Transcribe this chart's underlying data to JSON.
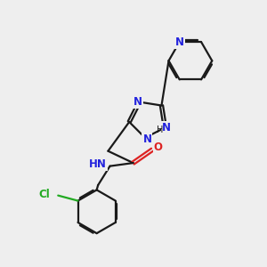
{
  "bg_color": "#eeeeee",
  "bond_color": "#1a1a1a",
  "N_color": "#2222dd",
  "O_color": "#dd2222",
  "Cl_color": "#22aa22",
  "line_width": 1.6,
  "figsize": [
    3.0,
    3.0
  ],
  "dpi": 100,
  "xlim": [
    0,
    10
  ],
  "ylim": [
    0,
    10
  ]
}
